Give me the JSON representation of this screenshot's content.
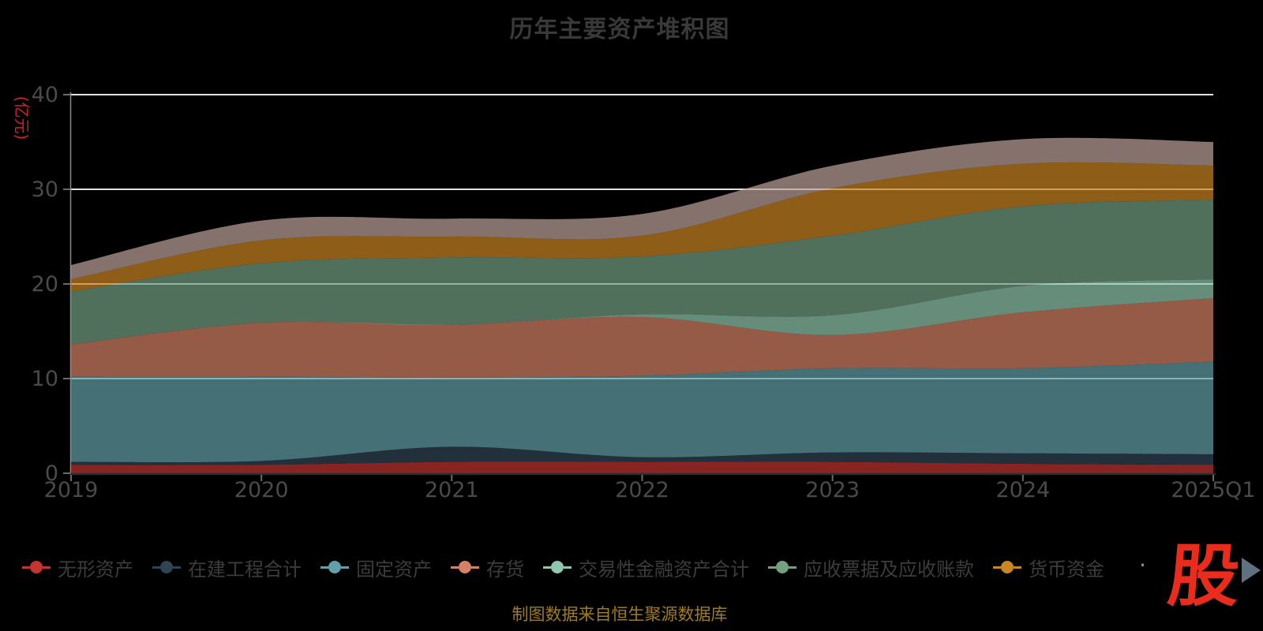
{
  "title": "历年主要资产堆积图",
  "y_axis_name": "(亿元)",
  "source_note": "制图数据来自恒生聚源数据库",
  "watermark": "股",
  "colors": {
    "background": "#000000",
    "title_text": "#393939",
    "axis_text": "#4a4a4a",
    "legend_text": "#3c3c3c",
    "unit_label_red": "#d32020",
    "source_text": "#a17c1a",
    "watermark_red": "#e92c1c",
    "legend_arrow": "#5e7280",
    "grid_line": "#e2e2e2",
    "axis_line": "#8a8a8a"
  },
  "legend": {
    "overflow_dot": "·",
    "items": [
      {
        "label": "无形资产",
        "color": "#c23531"
      },
      {
        "label": "在建工程合计",
        "color": "#2f4554"
      },
      {
        "label": "固定资产",
        "color": "#61a0a8"
      },
      {
        "label": "存货",
        "color": "#d48265"
      },
      {
        "label": "交易性金融资产合计",
        "color": "#91c7ae"
      },
      {
        "label": "应收票据及应收账款",
        "color": "#749f83"
      },
      {
        "label": "货币资金",
        "color": "#ca8622"
      }
    ]
  },
  "chart_data": {
    "type": "area",
    "stacked": true,
    "smooth": true,
    "title": "历年主要资产堆积图",
    "ylabel": "(亿元)",
    "ylim": [
      0,
      40
    ],
    "yticks": [
      0,
      10,
      20,
      30,
      40
    ],
    "grid": true,
    "legend_position": "bottom",
    "categories": [
      "2019",
      "2020",
      "2021",
      "2022",
      "2023",
      "2024",
      "2025Q1"
    ],
    "series": [
      {
        "name": "无形资产",
        "color": "#c23531",
        "values": [
          0.9,
          0.9,
          1.2,
          1.2,
          1.2,
          1.0,
          0.9
        ]
      },
      {
        "name": "在建工程合计",
        "color": "#2f4554",
        "values": [
          0.3,
          0.4,
          1.6,
          0.5,
          1.0,
          1.1,
          1.1
        ]
      },
      {
        "name": "固定资产",
        "color": "#61a0a8",
        "values": [
          9.0,
          8.9,
          7.3,
          8.6,
          8.9,
          9.0,
          9.8
        ]
      },
      {
        "name": "存货",
        "color": "#d48265",
        "values": [
          3.4,
          5.7,
          5.6,
          6.2,
          3.5,
          5.9,
          6.7
        ]
      },
      {
        "name": "交易性金融资产合计",
        "color": "#91c7ae",
        "values": [
          0.0,
          0.0,
          0.0,
          0.3,
          2.1,
          2.8,
          2.0
        ]
      },
      {
        "name": "应收票据及应收账款",
        "color": "#749f83",
        "values": [
          5.6,
          6.3,
          7.1,
          6.1,
          8.4,
          8.4,
          8.4
        ]
      },
      {
        "name": "货币资金",
        "color": "#ca8622",
        "values": [
          1.3,
          2.4,
          2.2,
          2.2,
          5.0,
          4.5,
          3.6
        ]
      },
      {
        "name": "",
        "color": "#bda29a",
        "values": [
          1.5,
          2.1,
          1.9,
          2.3,
          2.4,
          2.6,
          2.5
        ]
      }
    ]
  }
}
